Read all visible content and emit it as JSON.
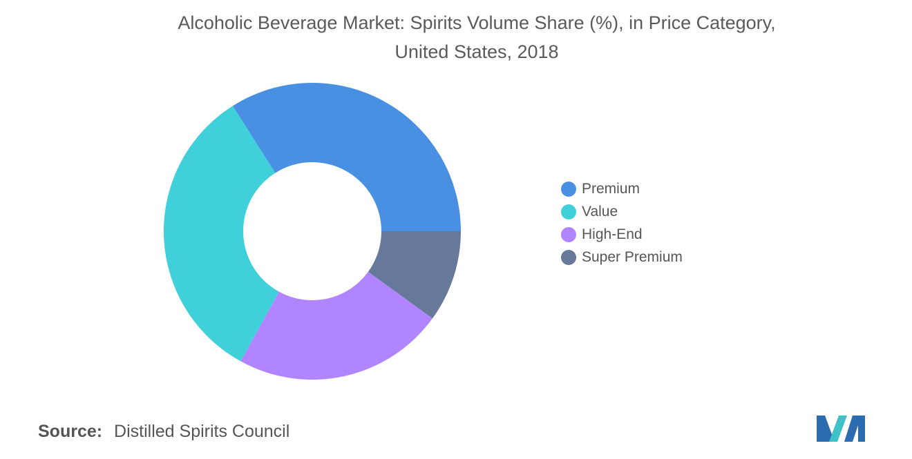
{
  "chart_data": {
    "type": "pie",
    "title_line1": "Alcoholic Beverage Market: Spirits Volume Share (%), in Price Category,",
    "title_line2": "United States, 2018",
    "donut": true,
    "categories": [
      "Premium",
      "Value",
      "High-End",
      "Super Premium"
    ],
    "values": [
      34,
      33,
      23,
      10
    ],
    "colors": [
      "#4a90e2",
      "#3fd0d9",
      "#b185ff",
      "#66799b"
    ],
    "legend_position": "right"
  },
  "source": {
    "label": "Source:",
    "text": "Distilled Spirits Council"
  },
  "logo": {
    "icon": "mordor-intelligence-logo",
    "colors": [
      "#2b6cb0",
      "#3fc1c9"
    ]
  }
}
